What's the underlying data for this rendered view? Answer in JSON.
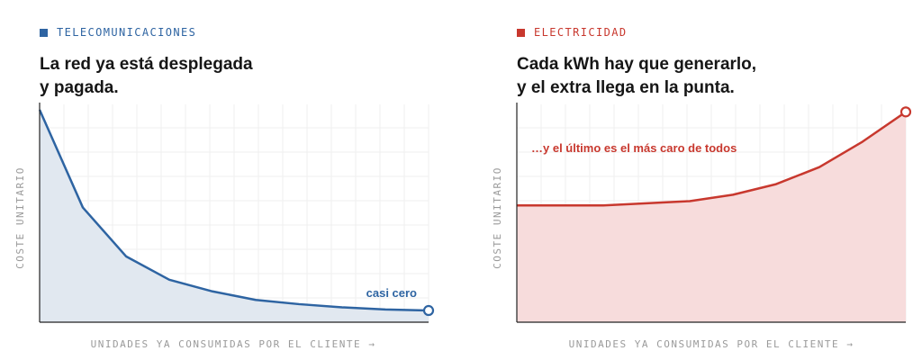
{
  "colors": {
    "telecom": "#2e64a2",
    "electric": "#c8382e",
    "axis": "#222222",
    "muted": "#9a9a9a"
  },
  "left_panel": {
    "tag": "TELECOMUNICACIONES",
    "title_lines": [
      "La red ya está desplegada",
      "y pagada."
    ],
    "ylabel": "COSTE UNITARIO",
    "xlabel": "UNIDADES YA CONSUMIDAS POR EL CLIENTE →",
    "annotation": "casi cero"
  },
  "right_panel": {
    "tag": "ELECTRICIDAD",
    "title_lines": [
      "Cada kWh hay que generarlo,",
      "y el extra llega en la punta."
    ],
    "ylabel": "COSTE UNITARIO",
    "xlabel": "UNIDADES YA CONSUMIDAS POR EL CLIENTE →",
    "annotation": "…y el último es el más caro de todos"
  },
  "chart_data": [
    {
      "type": "area",
      "title": "La red ya está desplegada y pagada.",
      "xlabel": "UNIDADES YA CONSUMIDAS POR EL CLIENTE →",
      "ylabel": "COSTE UNITARIO",
      "x": [
        0,
        1,
        2,
        3,
        4,
        5,
        6,
        7,
        8,
        9
      ],
      "series": [
        {
          "values": [
            100,
            54,
            31,
            20,
            14.5,
            10.5,
            8.5,
            7,
            6,
            5.5
          ]
        }
      ],
      "xlim": [
        0,
        9
      ],
      "ylim": [
        0,
        100
      ],
      "grid": true
    },
    {
      "type": "area",
      "title": "Cada kWh hay que generarlo, y el extra llega en la punta.",
      "xlabel": "UNIDADES YA CONSUMIDAS POR EL CLIENTE →",
      "ylabel": "COSTE UNITARIO",
      "x": [
        0,
        1,
        2,
        3,
        4,
        5,
        6,
        7,
        8,
        9
      ],
      "series": [
        {
          "values": [
            55,
            55,
            55,
            56,
            57,
            60,
            65,
            73,
            85,
            99
          ]
        }
      ],
      "xlim": [
        0,
        9
      ],
      "ylim": [
        0,
        100
      ],
      "grid": true
    }
  ]
}
